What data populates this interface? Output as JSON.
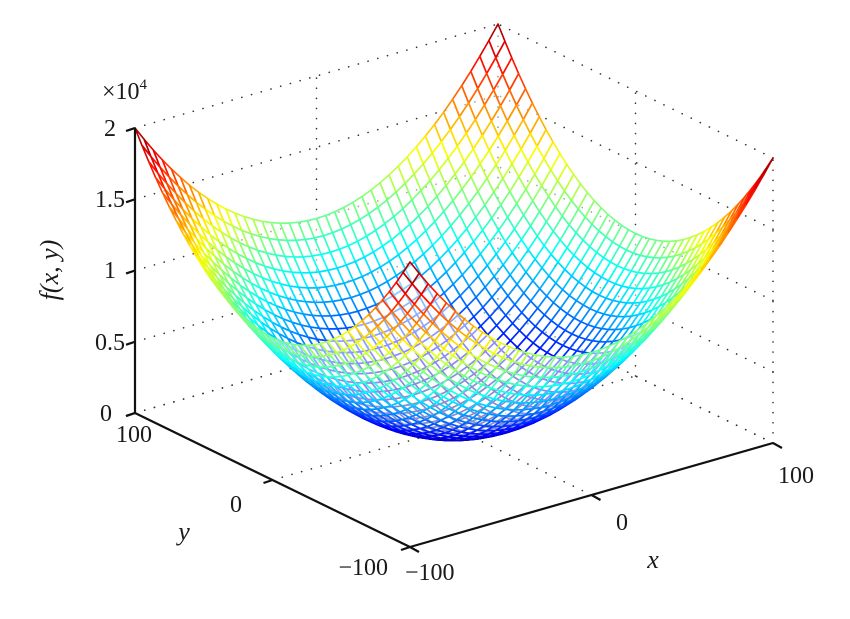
{
  "chart_data": {
    "type": "surface-mesh",
    "title": "",
    "function": "f(x, y) = x^2 + y^2",
    "xlabel": "x",
    "ylabel": "y",
    "zlabel": "f(x, y)",
    "z_exponent_label": "×10",
    "z_exponent_power": "4",
    "xlim": [
      -100,
      100
    ],
    "ylim": [
      -100,
      100
    ],
    "zlim": [
      0,
      20000
    ],
    "x_ticks": [
      -100,
      0,
      100
    ],
    "y_ticks": [
      -100,
      0,
      100
    ],
    "z_ticks": [
      0,
      5000,
      10000,
      15000,
      20000
    ],
    "x_tick_labels": [
      "−100",
      "0",
      "100"
    ],
    "y_tick_labels": [
      "−100",
      "0",
      "100"
    ],
    "z_tick_labels": [
      "0",
      "0.5",
      "1",
      "1.5",
      "2"
    ],
    "grid": true,
    "colormap": "jet",
    "mesh_resolution": 41,
    "sample_points": [
      {
        "x": -100,
        "y": -100,
        "z": 20000
      },
      {
        "x": -100,
        "y": 100,
        "z": 20000
      },
      {
        "x": 100,
        "y": -100,
        "z": 20000
      },
      {
        "x": 100,
        "y": 100,
        "z": 20000
      },
      {
        "x": 0,
        "y": 0,
        "z": 0
      },
      {
        "x": 100,
        "y": 0,
        "z": 10000
      },
      {
        "x": 0,
        "y": 100,
        "z": 10000
      }
    ]
  },
  "labels": {
    "x_axis": "x",
    "y_axis": "y",
    "z_axis": "f(x, y)",
    "z_multiplier": "×10",
    "z_multiplier_exp": "4",
    "x_ticks": [
      "−100",
      "0",
      "100"
    ],
    "y_ticks": [
      "−100",
      "0",
      "100"
    ],
    "z_ticks": [
      "0",
      "0.5",
      "1",
      "1.5",
      "2"
    ]
  }
}
